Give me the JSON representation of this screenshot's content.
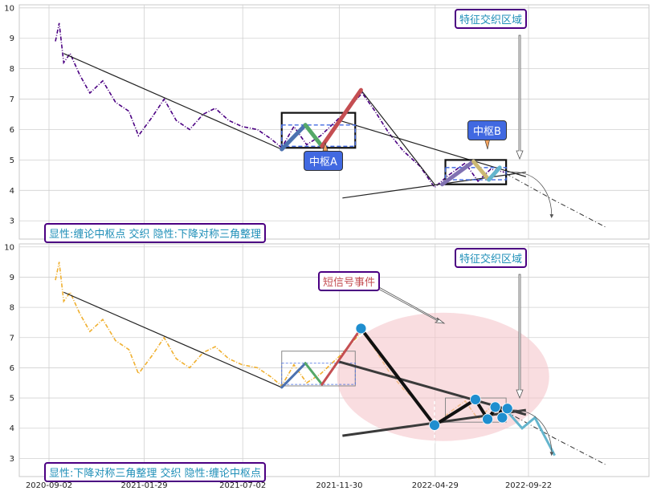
{
  "chart_data": {
    "type": "line",
    "x_ticks": [
      "2020-09-02",
      "2021-01-29",
      "2021-07-02",
      "2021-11-30",
      "2022-04-29",
      "2022-09-22"
    ],
    "y_ticks": [
      3,
      4,
      5,
      6,
      7,
      8,
      9,
      10
    ],
    "ylim": [
      2.4,
      10.1
    ],
    "grid": true,
    "colors": {
      "price_top": "#4b0082",
      "price_bottom": "#f0b030",
      "stroke_blue": "#4c72b0",
      "stroke_green": "#55a868",
      "stroke_red": "#c44e52",
      "stroke_purple": "#8172b2",
      "stroke_tan": "#ccb974",
      "stroke_cyan": "#64b5cd",
      "box_border": "#4b0082",
      "label_text": "#1f8fb8",
      "event_text": "#c44e52",
      "marker": "#1f8ecf",
      "event_ellipse": "#f5c6cb"
    },
    "price_series": [
      {
        "x": "2020-09-12",
        "y": 8.9
      },
      {
        "x": "2020-09-18",
        "y": 9.5
      },
      {
        "x": "2020-09-25",
        "y": 8.2
      },
      {
        "x": "2020-10-05",
        "y": 8.5
      },
      {
        "x": "2020-10-20",
        "y": 7.8
      },
      {
        "x": "2020-11-05",
        "y": 7.2
      },
      {
        "x": "2020-11-25",
        "y": 7.6
      },
      {
        "x": "2020-12-15",
        "y": 6.9
      },
      {
        "x": "2021-01-05",
        "y": 6.6
      },
      {
        "x": "2021-01-20",
        "y": 5.8
      },
      {
        "x": "2021-02-10",
        "y": 6.4
      },
      {
        "x": "2021-03-01",
        "y": 7.0
      },
      {
        "x": "2021-03-20",
        "y": 6.3
      },
      {
        "x": "2021-04-10",
        "y": 6.0
      },
      {
        "x": "2021-05-01",
        "y": 6.5
      },
      {
        "x": "2021-05-20",
        "y": 6.7
      },
      {
        "x": "2021-06-10",
        "y": 6.3
      },
      {
        "x": "2021-07-01",
        "y": 6.1
      },
      {
        "x": "2021-07-25",
        "y": 6.0
      },
      {
        "x": "2021-08-15",
        "y": 5.7
      },
      {
        "x": "2021-09-01",
        "y": 5.4
      },
      {
        "x": "2021-09-20",
        "y": 6.1
      },
      {
        "x": "2021-10-10",
        "y": 5.5
      },
      {
        "x": "2021-11-01",
        "y": 5.8
      },
      {
        "x": "2021-12-01",
        "y": 6.4
      },
      {
        "x": "2022-01-05",
        "y": 7.2
      },
      {
        "x": "2022-01-25",
        "y": 6.6
      },
      {
        "x": "2022-02-15",
        "y": 5.9
      },
      {
        "x": "2022-03-10",
        "y": 5.3
      },
      {
        "x": "2022-04-05",
        "y": 4.8
      },
      {
        "x": "2022-04-28",
        "y": 4.1
      },
      {
        "x": "2022-05-20",
        "y": 4.5
      },
      {
        "x": "2022-06-15",
        "y": 4.9
      },
      {
        "x": "2022-07-05",
        "y": 4.3
      },
      {
        "x": "2022-07-25",
        "y": 4.7
      },
      {
        "x": "2022-08-15",
        "y": 4.6
      }
    ],
    "top_panel": {
      "zigzag": [
        {
          "from": {
            "x": "2021-09-01",
            "y": 5.35
          },
          "to": {
            "x": "2021-10-08",
            "y": 6.15
          },
          "color": "#4c72b0"
        },
        {
          "from": {
            "x": "2021-10-08",
            "y": 6.15
          },
          "to": {
            "x": "2021-11-03",
            "y": 5.45
          },
          "color": "#55a868"
        },
        {
          "from": {
            "x": "2021-11-03",
            "y": 5.45
          },
          "to": {
            "x": "2022-01-03",
            "y": 7.3
          },
          "color": "#c44e52"
        },
        {
          "from": {
            "x": "2022-05-10",
            "y": 4.2
          },
          "to": {
            "x": "2022-06-28",
            "y": 4.95
          },
          "color": "#8172b2"
        },
        {
          "from": {
            "x": "2022-06-28",
            "y": 4.95
          },
          "to": {
            "x": "2022-07-22",
            "y": 4.35
          },
          "color": "#ccb974"
        },
        {
          "from": {
            "x": "2022-07-22",
            "y": 4.35
          },
          "to": {
            "x": "2022-08-08",
            "y": 4.75
          },
          "color": "#64b5cd"
        }
      ],
      "trend_lines": [
        {
          "from": {
            "x": "2020-09-25",
            "y": 8.5
          },
          "to": {
            "x": "2021-09-01",
            "y": 5.35
          }
        },
        {
          "from": {
            "x": "2022-01-03",
            "y": 7.3
          },
          "to": {
            "x": "2022-04-28",
            "y": 4.2
          }
        },
        {
          "from": {
            "x": "2021-11-30",
            "y": 6.3
          },
          "to": {
            "x": "2022-09-18",
            "y": 4.45
          }
        },
        {
          "from": {
            "x": "2021-12-05",
            "y": 3.75
          },
          "to": {
            "x": "2022-09-18",
            "y": 4.6
          }
        }
      ],
      "centers": [
        {
          "x0": "2021-09-01",
          "x1": "2021-12-25",
          "y0": 5.4,
          "y1": 6.55,
          "ix0": "2021-09-01",
          "ix1": "2021-12-25",
          "iy0": 5.45,
          "iy1": 6.15
        },
        {
          "x0": "2022-05-15",
          "x1": "2022-08-18",
          "y0": 4.2,
          "y1": 5.0,
          "ix0": "2022-05-15",
          "ix1": "2022-08-18",
          "iy0": 4.35,
          "iy1": 4.75
        }
      ],
      "projection": [
        {
          "x": "2022-08-18",
          "y": 4.55
        },
        {
          "x": "2022-10-30",
          "y": 3.7
        },
        {
          "x": "2023-01-20",
          "y": 2.8
        }
      ],
      "label_main": "显性:缠论中枢点 交织 隐性:下降对称三角整理",
      "label_feature": "特征交织区域",
      "label_center_a": "中枢A",
      "label_center_b": "中枢B"
    },
    "bottom_panel": {
      "zigzag": [
        {
          "from": {
            "x": "2021-09-01",
            "y": 5.35
          },
          "to": {
            "x": "2021-10-08",
            "y": 6.15
          },
          "color": "#4c72b0"
        },
        {
          "from": {
            "x": "2021-10-08",
            "y": 6.15
          },
          "to": {
            "x": "2021-11-03",
            "y": 5.45
          },
          "color": "#55a868"
        },
        {
          "from": {
            "x": "2021-11-03",
            "y": 5.45
          },
          "to": {
            "x": "2022-01-03",
            "y": 7.3
          },
          "color": "#c44e52"
        }
      ],
      "trend_lines": [
        {
          "from": {
            "x": "2020-09-25",
            "y": 8.5
          },
          "to": {
            "x": "2021-09-01",
            "y": 5.35
          }
        }
      ],
      "triangle": [
        {
          "x": "2022-01-03",
          "y": 7.3
        },
        {
          "x": "2022-04-28",
          "y": 4.1
        },
        {
          "x": "2022-07-01",
          "y": 4.95
        },
        {
          "x": "2022-07-20",
          "y": 4.3
        },
        {
          "x": "2022-08-05",
          "y": 4.75
        },
        {
          "x": "2022-08-12",
          "y": 4.4
        },
        {
          "x": "2022-08-20",
          "y": 4.65
        }
      ],
      "markers": [
        {
          "x": "2022-01-03",
          "y": 7.3
        },
        {
          "x": "2022-04-28",
          "y": 4.1
        },
        {
          "x": "2022-07-01",
          "y": 4.95
        },
        {
          "x": "2022-07-20",
          "y": 4.3
        },
        {
          "x": "2022-08-01",
          "y": 4.7
        },
        {
          "x": "2022-08-12",
          "y": 4.35
        },
        {
          "x": "2022-08-20",
          "y": 4.65
        }
      ],
      "center_box": {
        "x0": "2021-09-01",
        "x1": "2021-12-25",
        "y0": 5.4,
        "y1": 6.55,
        "iy0": 5.45,
        "iy1": 6.15
      },
      "center_box_b": {
        "x0": "2022-05-15",
        "x1": "2022-08-18",
        "y0": 4.2,
        "y1": 5.0,
        "iy0": 4.35,
        "iy1": 4.75
      },
      "projection": [
        {
          "x": "2022-08-18",
          "y": 4.55
        },
        {
          "x": "2022-10-30",
          "y": 3.7
        },
        {
          "x": "2023-01-20",
          "y": 2.8
        }
      ],
      "label_main": "显性:下降对称三角整理 交织 隐性:缠论中枢点",
      "label_feature": "特征交织区域",
      "label_event": "短信号事件"
    }
  }
}
